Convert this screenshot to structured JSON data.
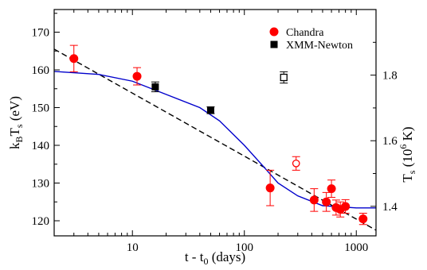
{
  "chart_data": {
    "type": "scatter",
    "xscale": "log",
    "xlim": [
      2,
      1500
    ],
    "ylim": [
      116,
      176
    ],
    "ylim_right": [
      1.31,
      2.0
    ],
    "xlabel": {
      "base": "t - t",
      "sub": "0",
      "tail": " (days)"
    },
    "ylabel": {
      "pre": "k",
      "sub1": "B",
      "mid": "T",
      "sub2": "s",
      "tail": " (eV)"
    },
    "ylabel_right": {
      "pre": "T",
      "sub1": "s",
      "mid": " (10",
      "sup": "6",
      "tail": " K)"
    },
    "x_ticks": [
      {
        "value": 10,
        "label": "10"
      },
      {
        "value": 100,
        "label": "100"
      },
      {
        "value": 1000,
        "label": "1000"
      }
    ],
    "y_ticks": [
      120,
      130,
      140,
      150,
      160,
      170
    ],
    "y_ticks_right": [
      {
        "value": 1.4,
        "label": "1.4"
      },
      {
        "value": 1.6,
        "label": "1.6"
      },
      {
        "value": 1.8,
        "label": "1.8"
      }
    ],
    "legend": {
      "position": "top-right",
      "entries": [
        {
          "label": "Chandra",
          "marker": "circle",
          "color": "#ff0000"
        },
        {
          "label": "XMM-Newton",
          "marker": "square",
          "color": "#000000"
        }
      ]
    },
    "series": [
      {
        "name": "Chandra",
        "marker": "circle",
        "color": "#ff0000",
        "points": [
          {
            "x": 3,
            "y": 163,
            "err": 3.5,
            "open": false
          },
          {
            "x": 11,
            "y": 158.3,
            "err": 2.3,
            "open": false
          },
          {
            "x": 170,
            "y": 128.7,
            "err": 4.7,
            "open": false
          },
          {
            "x": 290,
            "y": 135.2,
            "err": 1.8,
            "open": true
          },
          {
            "x": 420,
            "y": 125.5,
            "err": 3,
            "open": false
          },
          {
            "x": 540,
            "y": 125,
            "err": 2.5,
            "open": false
          },
          {
            "x": 600,
            "y": 128.5,
            "err": 2.3,
            "open": false
          },
          {
            "x": 660,
            "y": 123.5,
            "err": 2,
            "open": false
          },
          {
            "x": 720,
            "y": 123,
            "err": 2,
            "open": false
          },
          {
            "x": 800,
            "y": 123.8,
            "err": 1.8,
            "open": false
          },
          {
            "x": 1150,
            "y": 120.5,
            "err": 1.5,
            "open": false
          }
        ]
      },
      {
        "name": "XMM-Newton",
        "marker": "square",
        "color": "#000000",
        "points": [
          {
            "x": 16,
            "y": 155.5,
            "err": 1.3,
            "open": false
          },
          {
            "x": 50,
            "y": 149.3,
            "err": 0.9,
            "open": false
          },
          {
            "x": 225,
            "y": 158,
            "err": 1.5,
            "open": true
          }
        ]
      }
    ],
    "lines": [
      {
        "kind": "power-law fit",
        "style": "dashed",
        "color": "#000000",
        "x": [
          2,
          1500
        ],
        "y": [
          165.5,
          117.5
        ]
      },
      {
        "kind": "model curve",
        "style": "solid",
        "color": "#0000cc",
        "x": [
          2,
          5,
          10,
          20,
          40,
          60,
          100,
          150,
          200,
          300,
          500,
          1000,
          1500
        ],
        "y": [
          159.6,
          158.8,
          157,
          153.5,
          150,
          146.5,
          140,
          134.2,
          130,
          126.6,
          124,
          123.4,
          123.4
        ]
      }
    ]
  }
}
